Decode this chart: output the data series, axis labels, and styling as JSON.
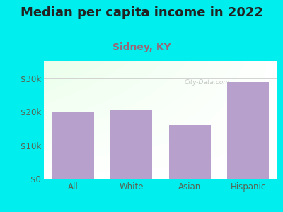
{
  "title": "Median per capita income in 2022",
  "subtitle": "Sidney, KY",
  "categories": [
    "All",
    "White",
    "Asian",
    "Hispanic"
  ],
  "values": [
    20000,
    20500,
    16000,
    29000
  ],
  "bar_color": "#b8a0cc",
  "background_color": "#00EEEE",
  "title_fontsize": 13,
  "subtitle_fontsize": 10,
  "subtitle_color": "#996677",
  "tick_label_color": "#556655",
  "ylim": [
    0,
    35000
  ],
  "yticks": [
    0,
    10000,
    20000,
    30000
  ],
  "ytick_labels": [
    "$0",
    "$10k",
    "$20k",
    "$30k"
  ],
  "watermark": "City-Data.com"
}
